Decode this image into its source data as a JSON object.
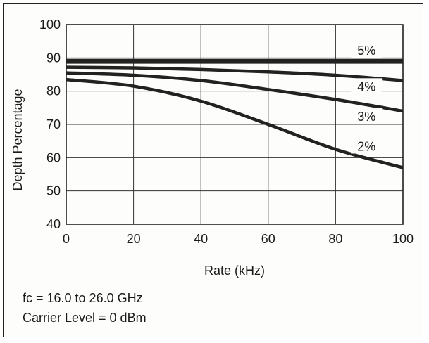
{
  "chart_data": {
    "type": "line",
    "title": "",
    "xlabel": "Rate (kHz)",
    "ylabel": "Depth Percentage",
    "xlim": [
      0,
      100
    ],
    "ylim": [
      40,
      100
    ],
    "x_ticks": [
      0,
      20,
      40,
      60,
      80,
      100
    ],
    "y_ticks": [
      40,
      50,
      60,
      70,
      80,
      90,
      100
    ],
    "grid": true,
    "legend": "none",
    "series": [
      {
        "name": "5%",
        "x": [
          0,
          20,
          40,
          60,
          80,
          100
        ],
        "values": [
          89,
          89,
          89,
          89,
          89,
          89
        ]
      },
      {
        "name": "4%",
        "x": [
          0,
          20,
          40,
          60,
          80,
          100
        ],
        "values": [
          87.2,
          87,
          86.5,
          85.8,
          84.8,
          83.2
        ]
      },
      {
        "name": "3%",
        "x": [
          0,
          20,
          40,
          60,
          80,
          100
        ],
        "values": [
          85.5,
          84.8,
          83.2,
          80.5,
          77.5,
          74
        ]
      },
      {
        "name": "2%",
        "x": [
          0,
          20,
          40,
          60,
          80,
          100
        ],
        "values": [
          83.5,
          81.5,
          77,
          70,
          62.5,
          57
        ]
      }
    ],
    "curve_labels": [
      {
        "text": "5%",
        "x": 90,
        "y": 91.3
      },
      {
        "text": "4%",
        "x": 90,
        "y": 80.5
      },
      {
        "text": "3%",
        "x": 90,
        "y": 71.5
      },
      {
        "text": "2%",
        "x": 90,
        "y": 62.5
      }
    ],
    "line_color": "#222222"
  },
  "notes": {
    "fc": "fc = 16.0 to 26.0 GHz",
    "carrier": "Carrier Level = 0 dBm"
  }
}
